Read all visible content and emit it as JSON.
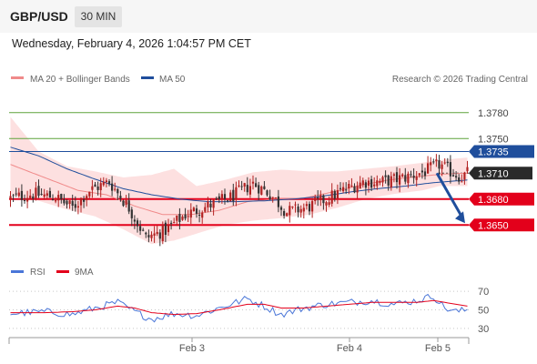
{
  "header": {
    "pair": "GBP/USD",
    "timeframe": "30 MIN",
    "datetime": "Wednesday, February 4, 2026 1:04:57 PM CET"
  },
  "legend": {
    "ma20_label": "MA 20 + Bollinger Bands",
    "ma50_label": "MA 50",
    "credit": "Research © 2026 Trading Central",
    "rsi_label": "RSI",
    "rsi_ma_label": "9MA"
  },
  "colors": {
    "up": "#5fa33a",
    "down": "#e3001b",
    "candle_up": "#b22222",
    "candle_down": "#333333",
    "ma20": "#f08a8a",
    "ma50": "#1f4e9c",
    "bands": "#fde0e0",
    "rsi": "#4a76d8",
    "rsi_ma": "#e3001b",
    "price_tag": "#2a2a2a",
    "blue": "#1f4e9c"
  },
  "chart_data": [
    {
      "type": "candlestick",
      "title": "GBP/USD 30 MIN",
      "ylim": [
        1.3605,
        1.3805
      ],
      "x_ticks": [
        "Feb 3",
        "Feb 4",
        "Feb 5"
      ],
      "levels": [
        {
          "value": 1.378,
          "label": "1.3780",
          "color": "#5fa33a",
          "style": "line"
        },
        {
          "value": 1.375,
          "label": "1.3750",
          "color": "#5fa33a",
          "style": "line"
        },
        {
          "value": 1.3735,
          "label": "1.3735",
          "color": "#1f4e9c",
          "style": "tag"
        },
        {
          "value": 1.371,
          "label": "1.3710",
          "color": "#2a2a2a",
          "style": "tag"
        },
        {
          "value": 1.368,
          "label": "1.3680",
          "color": "#e3001b",
          "style": "tag"
        },
        {
          "value": 1.365,
          "label": "1.3650",
          "color": "#e3001b",
          "style": "tag"
        }
      ],
      "close_anchors": [
        [
          0,
          1.3681
        ],
        [
          8,
          1.3686
        ],
        [
          16,
          1.3682
        ],
        [
          22,
          1.367
        ],
        [
          28,
          1.369
        ],
        [
          35,
          1.37
        ],
        [
          42,
          1.367
        ],
        [
          48,
          1.3635
        ],
        [
          55,
          1.3644
        ],
        [
          62,
          1.3662
        ],
        [
          70,
          1.3672
        ],
        [
          78,
          1.3682
        ],
        [
          86,
          1.3698
        ],
        [
          92,
          1.3686
        ],
        [
          98,
          1.3665
        ],
        [
          105,
          1.367
        ],
        [
          112,
          1.368
        ],
        [
          118,
          1.369
        ],
        [
          125,
          1.37
        ],
        [
          132,
          1.37
        ],
        [
          140,
          1.3705
        ],
        [
          147,
          1.3712
        ],
        [
          152,
          1.372
        ],
        [
          156,
          1.3712
        ],
        [
          160,
          1.3705
        ],
        [
          162,
          1.371
        ]
      ],
      "ma20_anchors": [
        [
          0,
          1.372
        ],
        [
          12,
          1.3705
        ],
        [
          24,
          1.369
        ],
        [
          34,
          1.3685
        ],
        [
          44,
          1.3672
        ],
        [
          54,
          1.3662
        ],
        [
          64,
          1.3662
        ],
        [
          74,
          1.3667
        ],
        [
          84,
          1.3677
        ],
        [
          94,
          1.368
        ],
        [
          104,
          1.3681
        ],
        [
          114,
          1.3688
        ],
        [
          124,
          1.3696
        ],
        [
          134,
          1.3702
        ],
        [
          144,
          1.3706
        ],
        [
          154,
          1.3709
        ],
        [
          162,
          1.371
        ]
      ],
      "ma50_anchors": [
        [
          0,
          1.374
        ],
        [
          10,
          1.373
        ],
        [
          20,
          1.3715
        ],
        [
          30,
          1.3703
        ],
        [
          40,
          1.3692
        ],
        [
          50,
          1.3685
        ],
        [
          60,
          1.368
        ],
        [
          70,
          1.3677
        ],
        [
          80,
          1.3677
        ],
        [
          90,
          1.3678
        ],
        [
          100,
          1.368
        ],
        [
          110,
          1.3683
        ],
        [
          120,
          1.3688
        ],
        [
          130,
          1.3692
        ],
        [
          140,
          1.3695
        ],
        [
          150,
          1.3699
        ],
        [
          162,
          1.3702
        ]
      ],
      "upper_band_anchors": [
        [
          0,
          1.3775
        ],
        [
          10,
          1.3735
        ],
        [
          20,
          1.3718
        ],
        [
          30,
          1.3712
        ],
        [
          40,
          1.3705
        ],
        [
          50,
          1.3708
        ],
        [
          58,
          1.3715
        ],
        [
          66,
          1.3695
        ],
        [
          76,
          1.3702
        ],
        [
          86,
          1.3711
        ],
        [
          96,
          1.3714
        ],
        [
          106,
          1.3712
        ],
        [
          116,
          1.3712
        ],
        [
          126,
          1.3715
        ],
        [
          136,
          1.3718
        ],
        [
          146,
          1.3722
        ],
        [
          152,
          1.3725
        ],
        [
          162,
          1.3728
        ]
      ],
      "lower_band_anchors": [
        [
          0,
          1.3685
        ],
        [
          10,
          1.3678
        ],
        [
          20,
          1.3668
        ],
        [
          30,
          1.366
        ],
        [
          40,
          1.3645
        ],
        [
          50,
          1.3628
        ],
        [
          58,
          1.3632
        ],
        [
          66,
          1.364
        ],
        [
          76,
          1.365
        ],
        [
          86,
          1.3655
        ],
        [
          96,
          1.3658
        ],
        [
          106,
          1.3662
        ],
        [
          116,
          1.367
        ],
        [
          126,
          1.368
        ],
        [
          136,
          1.3686
        ],
        [
          146,
          1.369
        ],
        [
          152,
          1.3695
        ],
        [
          162,
          1.3695
        ]
      ],
      "forecast_arrow": {
        "from": 1.371,
        "to": 1.365
      }
    },
    {
      "type": "line",
      "title": "RSI",
      "ylim": [
        25,
        75
      ],
      "y_ticks": [
        70,
        50,
        30
      ],
      "rsi_anchors": [
        [
          0,
          46
        ],
        [
          12,
          48
        ],
        [
          22,
          45
        ],
        [
          30,
          52
        ],
        [
          38,
          58
        ],
        [
          44,
          48
        ],
        [
          50,
          40
        ],
        [
          58,
          46
        ],
        [
          66,
          44
        ],
        [
          74,
          52
        ],
        [
          84,
          62
        ],
        [
          90,
          54
        ],
        [
          96,
          45
        ],
        [
          104,
          52
        ],
        [
          112,
          56
        ],
        [
          120,
          58
        ],
        [
          128,
          60
        ],
        [
          136,
          56
        ],
        [
          144,
          60
        ],
        [
          150,
          65
        ],
        [
          154,
          52
        ],
        [
          158,
          48
        ],
        [
          162,
          50
        ]
      ],
      "rsi_ma_anchors": [
        [
          0,
          47
        ],
        [
          12,
          47
        ],
        [
          22,
          48
        ],
        [
          30,
          50
        ],
        [
          38,
          54
        ],
        [
          44,
          52
        ],
        [
          50,
          47
        ],
        [
          58,
          45
        ],
        [
          66,
          46
        ],
        [
          74,
          50
        ],
        [
          84,
          56
        ],
        [
          90,
          56
        ],
        [
          96,
          52
        ],
        [
          104,
          52
        ],
        [
          112,
          54
        ],
        [
          120,
          56
        ],
        [
          128,
          58
        ],
        [
          136,
          58
        ],
        [
          144,
          58
        ],
        [
          150,
          60
        ],
        [
          156,
          57
        ],
        [
          162,
          54
        ]
      ]
    }
  ]
}
